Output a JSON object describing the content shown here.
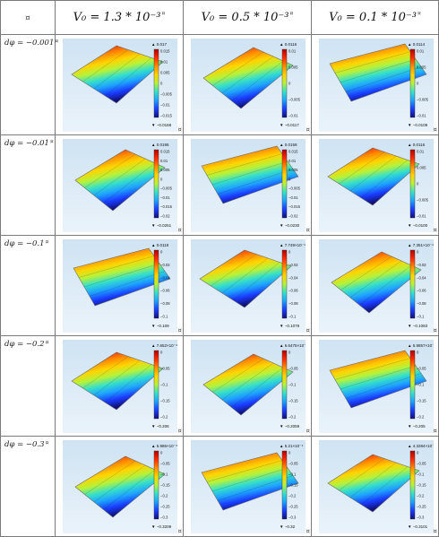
{
  "header": {
    "corner": "¤",
    "columns": [
      {
        "label": "V₀ = 1.3 * 10⁻³",
        "mark": "¤"
      },
      {
        "label": "V₀ = 0.5 * 10⁻³",
        "mark": "¤"
      },
      {
        "label": "V₀ = 0.1 * 10⁻³",
        "mark": "¤"
      }
    ]
  },
  "rows": [
    {
      "label": "dφ = −0.001",
      "mark": "¤"
    },
    {
      "label": "dφ = −0.01",
      "mark": "¤"
    },
    {
      "label": "dφ = −0.1",
      "mark": "¤"
    },
    {
      "label": "dφ = −0.2",
      "mark": "¤"
    },
    {
      "label": "dφ = −0.3",
      "mark": "¤"
    }
  ],
  "cells": [
    [
      {
        "top": "▲ 0.017",
        "bottom": "▼ −0.0168",
        "ticks": [
          "0.015",
          "0.01",
          "0.005",
          "0",
          "−0.005",
          "−0.01",
          "−0.015"
        ]
      },
      {
        "top": "▲ 0.0116",
        "bottom": "▼ −0.0117",
        "ticks": [
          "0.01",
          "0.005",
          "0",
          "−0.005",
          "−0.01"
        ]
      },
      {
        "top": "▲ 0.0114",
        "bottom": "▼ −0.0108",
        "ticks": [
          "0.01",
          "0.005",
          "0",
          "−0.005",
          "−0.01"
        ]
      }
    ],
    [
      {
        "top": "▲ 0.0195",
        "bottom": "▼ −0.0251",
        "ticks": [
          "0.015",
          "0.01",
          "0.005",
          "0",
          "−0.005",
          "−0.01",
          "−0.015",
          "−0.02"
        ]
      },
      {
        "top": "▲ 0.0159",
        "bottom": "▼ −0.0230",
        "ticks": [
          "0.015",
          "0.01",
          "0.005",
          "0",
          "−0.005",
          "−0.01",
          "−0.015",
          "−0.02"
        ]
      },
      {
        "top": "▲ 0.0116",
        "bottom": "▼ −0.0100",
        "ticks": [
          "0.01",
          "0.005",
          "0",
          "−0.005",
          "−0.01"
        ]
      }
    ],
    [
      {
        "top": "▲ 0.0118",
        "bottom": "▼ −0.109",
        "ticks": [
          "0",
          "−0.02",
          "−0.04",
          "−0.06",
          "−0.08",
          "−0.1"
        ]
      },
      {
        "top": "▲ 7.749×10⁻⁴",
        "bottom": "▼ −0.1079",
        "ticks": [
          "0",
          "−0.02",
          "−0.04",
          "−0.06",
          "−0.08",
          "−0.1"
        ]
      },
      {
        "top": "▲ 7.351×10⁻⁴",
        "bottom": "▼ −0.1083",
        "ticks": [
          "0",
          "−0.02",
          "−0.04",
          "−0.06",
          "−0.08",
          "−0.1"
        ]
      }
    ],
    [
      {
        "top": "▲ 7.652×10⁻⁴",
        "bottom": "▼ −0.206",
        "ticks": [
          "0",
          "−0.05",
          "−0.1",
          "−0.15",
          "−0.2"
        ]
      },
      {
        "top": "▲ 6.6475×10⁻⁴",
        "bottom": "▼ −0.2059",
        "ticks": [
          "0",
          "−0.05",
          "−0.1",
          "−0.15",
          "−0.2"
        ]
      },
      {
        "top": "▲ 5.9857×10⁻⁴",
        "bottom": "▼ −0.205",
        "ticks": [
          "0",
          "−0.05",
          "−0.1",
          "−0.15",
          "−0.2"
        ]
      }
    ],
    [
      {
        "top": "▲ 5.986×10⁻⁴",
        "bottom": "▼ −0.3209",
        "ticks": [
          "0",
          "−0.05",
          "−0.1",
          "−0.15",
          "−0.2",
          "−0.25",
          "−0.3"
        ]
      },
      {
        "top": "▲ 5.21×10⁻⁴",
        "bottom": "▼ −0.32",
        "ticks": [
          "0",
          "−0.05",
          "−0.1",
          "−0.15",
          "−0.2",
          "−0.25",
          "−0.3"
        ]
      },
      {
        "top": "▲ 4.3284×10⁻⁴",
        "bottom": "▼ −0.3101",
        "ticks": [
          "0",
          "−0.05",
          "−0.1",
          "−0.15",
          "−0.2",
          "−0.25",
          "−0.3"
        ]
      }
    ]
  ]
}
